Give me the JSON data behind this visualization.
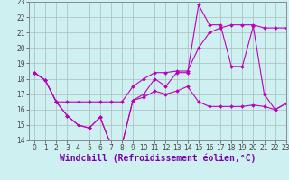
{
  "xlabel": "Windchill (Refroidissement éolien,°C)",
  "x": [
    0,
    1,
    2,
    3,
    4,
    5,
    6,
    7,
    8,
    9,
    10,
    11,
    12,
    13,
    14,
    15,
    16,
    17,
    18,
    19,
    20,
    21,
    22,
    23
  ],
  "line1": [
    18.4,
    17.9,
    16.5,
    15.6,
    15.0,
    14.8,
    15.5,
    13.7,
    13.7,
    16.6,
    16.8,
    17.2,
    17.0,
    17.2,
    17.5,
    16.5,
    16.2,
    16.2,
    16.2,
    16.2,
    16.3,
    16.2,
    16.0,
    16.4
  ],
  "line2": [
    18.4,
    17.9,
    16.5,
    16.5,
    16.5,
    16.5,
    16.5,
    16.5,
    16.5,
    17.5,
    18.0,
    18.4,
    18.4,
    18.5,
    18.5,
    20.0,
    21.0,
    21.3,
    21.5,
    21.5,
    21.5,
    21.3,
    21.3,
    21.3
  ],
  "line3": [
    18.4,
    17.9,
    16.5,
    15.6,
    15.0,
    14.8,
    15.5,
    13.7,
    13.7,
    16.6,
    17.0,
    18.0,
    17.5,
    18.4,
    18.4,
    22.8,
    21.5,
    21.5,
    18.8,
    18.8,
    21.4,
    17.0,
    16.0,
    16.4
  ],
  "line_color": "#bb00bb",
  "bg_color": "#cff0f0",
  "grid_color": "#aabbbb",
  "ylim": [
    14,
    23
  ],
  "xlim": [
    -0.5,
    23
  ],
  "yticks": [
    14,
    15,
    16,
    17,
    18,
    19,
    20,
    21,
    22,
    23
  ],
  "xticks": [
    0,
    1,
    2,
    3,
    4,
    5,
    6,
    7,
    8,
    9,
    10,
    11,
    12,
    13,
    14,
    15,
    16,
    17,
    18,
    19,
    20,
    21,
    22,
    23
  ],
  "tick_fontsize": 5.5,
  "xlabel_fontsize": 7.0,
  "marker": "D",
  "marker_size": 2.0
}
